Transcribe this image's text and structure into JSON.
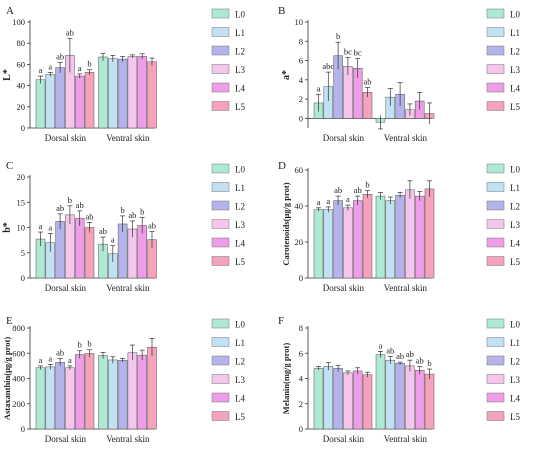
{
  "colors": [
    "#aee9d3",
    "#c2e1f2",
    "#b4b4ea",
    "#f4c6ec",
    "#ee9ee6",
    "#f5a3bd"
  ],
  "legend": [
    "L0",
    "L1",
    "L2",
    "L3",
    "L4",
    "L5"
  ],
  "chart_data": [
    {
      "type": "bar",
      "panel": "A",
      "ylabel": "L*",
      "ylim": [
        0,
        100
      ],
      "yticks": [
        0,
        20,
        40,
        60,
        80,
        100
      ],
      "groups": [
        "Dorsal skin",
        "Ventral skin"
      ],
      "series": [
        {
          "name": "L0",
          "values": [
            45.5,
            67.0
          ],
          "err": [
            3.5,
            3.5
          ],
          "labels": [
            "a",
            ""
          ]
        },
        {
          "name": "L1",
          "values": [
            50.5,
            65.5
          ],
          "err": [
            2.0,
            3.0
          ],
          "labels": [
            "a",
            ""
          ]
        },
        {
          "name": "L2",
          "values": [
            57.0,
            65.0
          ],
          "err": [
            5.0,
            2.5
          ],
          "labels": [
            "ab",
            ""
          ]
        },
        {
          "name": "L3",
          "values": [
            68.5,
            67.5
          ],
          "err": [
            16.0,
            1.5
          ],
          "labels": [
            "ab",
            ""
          ]
        },
        {
          "name": "L4",
          "values": [
            49.0,
            67.5
          ],
          "err": [
            2.0,
            2.5
          ],
          "labels": [
            "a",
            ""
          ]
        },
        {
          "name": "L5",
          "values": [
            52.5,
            62.5
          ],
          "err": [
            2.5,
            3.5
          ],
          "labels": [
            "b",
            ""
          ]
        }
      ]
    },
    {
      "type": "bar",
      "panel": "B",
      "ylabel": "a*",
      "ylim": [
        -1,
        10
      ],
      "yticks": [
        0,
        2,
        4,
        6,
        8,
        10
      ],
      "groups": [
        "Dorsal skin",
        "Ventral skin"
      ],
      "series": [
        {
          "name": "L0",
          "values": [
            1.6,
            -0.4
          ],
          "err": [
            0.9,
            0.7
          ],
          "labels": [
            "a",
            ""
          ]
        },
        {
          "name": "L1",
          "values": [
            3.3,
            2.2
          ],
          "err": [
            1.5,
            0.9
          ],
          "labels": [
            "abc",
            ""
          ]
        },
        {
          "name": "L2",
          "values": [
            6.5,
            2.5
          ],
          "err": [
            1.4,
            1.2
          ],
          "labels": [
            "b",
            ""
          ]
        },
        {
          "name": "L3",
          "values": [
            5.4,
            0.9
          ],
          "err": [
            0.9,
            0.6
          ],
          "labels": [
            "bc",
            ""
          ]
        },
        {
          "name": "L4",
          "values": [
            5.2,
            1.8
          ],
          "err": [
            1.0,
            0.9
          ],
          "labels": [
            "bc",
            ""
          ]
        },
        {
          "name": "L5",
          "values": [
            2.7,
            0.5
          ],
          "err": [
            0.5,
            1.1
          ],
          "labels": [
            "ab",
            ""
          ]
        }
      ]
    },
    {
      "type": "bar",
      "panel": "C",
      "ylabel": "b*",
      "ylim": [
        0,
        20
      ],
      "yticks": [
        0,
        5,
        10,
        15,
        20
      ],
      "groups": [
        "Dorsal skin",
        "Ventral skin"
      ],
      "series": [
        {
          "name": "L0",
          "values": [
            7.7,
            6.7
          ],
          "err": [
            1.4,
            1.4
          ],
          "labels": [
            "a",
            "ab"
          ]
        },
        {
          "name": "L1",
          "values": [
            7.0,
            4.8
          ],
          "err": [
            1.8,
            1.6
          ],
          "labels": [
            "a",
            "a"
          ]
        },
        {
          "name": "L2",
          "values": [
            11.2,
            10.7
          ],
          "err": [
            1.5,
            1.6
          ],
          "labels": [
            "ab",
            "b"
          ]
        },
        {
          "name": "L3",
          "values": [
            12.5,
            9.7
          ],
          "err": [
            1.8,
            1.6
          ],
          "labels": [
            "b",
            "ab"
          ]
        },
        {
          "name": "L4",
          "values": [
            11.8,
            10.4
          ],
          "err": [
            1.5,
            1.6
          ],
          "labels": [
            "ab",
            "b"
          ]
        },
        {
          "name": "L5",
          "values": [
            10.0,
            7.6
          ],
          "err": [
            1.0,
            1.6
          ],
          "labels": [
            "ab",
            "ab"
          ]
        }
      ]
    },
    {
      "type": "bar",
      "panel": "D",
      "ylabel": "Carotenoids(μg/g prot)",
      "ylim": [
        0,
        60
      ],
      "yticks": [
        0,
        20,
        40,
        60
      ],
      "groups": [
        "Dorsal skin",
        "Ventral skin"
      ],
      "series": [
        {
          "name": "L0",
          "values": [
            38.0,
            45.5
          ],
          "err": [
            1.0,
            2.0
          ],
          "labels": [
            "a",
            ""
          ]
        },
        {
          "name": "L1",
          "values": [
            38.0,
            43.0
          ],
          "err": [
            1.5,
            2.0
          ],
          "labels": [
            "a",
            ""
          ]
        },
        {
          "name": "L2",
          "values": [
            43.0,
            46.0
          ],
          "err": [
            2.5,
            1.5
          ],
          "labels": [
            "ab",
            ""
          ]
        },
        {
          "name": "L3",
          "values": [
            39.0,
            49.0
          ],
          "err": [
            1.5,
            5.0
          ],
          "labels": [
            "a",
            ""
          ]
        },
        {
          "name": "L4",
          "values": [
            43.0,
            45.5
          ],
          "err": [
            2.5,
            2.5
          ],
          "labels": [
            "ab",
            ""
          ]
        },
        {
          "name": "L5",
          "values": [
            46.5,
            49.5
          ],
          "err": [
            2.0,
            4.5
          ],
          "labels": [
            "b",
            ""
          ]
        }
      ]
    },
    {
      "type": "bar",
      "panel": "E",
      "ylabel": "Astaxanthin(μg/g prot)",
      "ylim": [
        0,
        800
      ],
      "yticks": [
        0,
        200,
        400,
        600,
        800
      ],
      "groups": [
        "Dorsal skin",
        "Ventral skin"
      ],
      "series": [
        {
          "name": "L0",
          "values": [
            485,
            582
          ],
          "err": [
            15,
            25
          ],
          "labels": [
            "a",
            ""
          ]
        },
        {
          "name": "L1",
          "values": [
            492,
            547
          ],
          "err": [
            20,
            25
          ],
          "labels": [
            "a",
            ""
          ]
        },
        {
          "name": "L2",
          "values": [
            528,
            545
          ],
          "err": [
            30,
            15
          ],
          "labels": [
            "ab",
            ""
          ]
        },
        {
          "name": "L3",
          "values": [
            485,
            605
          ],
          "err": [
            15,
            60
          ],
          "labels": [
            "a",
            ""
          ]
        },
        {
          "name": "L4",
          "values": [
            590,
            585
          ],
          "err": [
            30,
            40
          ],
          "labels": [
            "b",
            ""
          ]
        },
        {
          "name": "L5",
          "values": [
            598,
            648
          ],
          "err": [
            30,
            70
          ],
          "labels": [
            "b",
            ""
          ]
        }
      ]
    },
    {
      "type": "bar",
      "panel": "F",
      "ylabel": "Melanin(mg/g prot)",
      "ylim": [
        0,
        8
      ],
      "yticks": [
        0,
        2,
        4,
        6,
        8
      ],
      "groups": [
        "Dorsal skin",
        "Ventral skin"
      ],
      "series": [
        {
          "name": "L0",
          "values": [
            4.8,
            5.9
          ],
          "err": [
            0.15,
            0.25
          ],
          "labels": [
            "",
            "a"
          ]
        },
        {
          "name": "L1",
          "values": [
            4.95,
            5.45
          ],
          "err": [
            0.3,
            0.3
          ],
          "labels": [
            "",
            "ab"
          ]
        },
        {
          "name": "L2",
          "values": [
            4.8,
            5.2
          ],
          "err": [
            0.25,
            0.1
          ],
          "labels": [
            "",
            "ab"
          ]
        },
        {
          "name": "L3",
          "values": [
            4.45,
            5.0
          ],
          "err": [
            0.15,
            0.45
          ],
          "labels": [
            "",
            "ab"
          ]
        },
        {
          "name": "L4",
          "values": [
            4.6,
            4.65
          ],
          "err": [
            0.25,
            0.3
          ],
          "labels": [
            "",
            "ab"
          ]
        },
        {
          "name": "L5",
          "values": [
            4.3,
            4.35
          ],
          "err": [
            0.2,
            0.4
          ],
          "labels": [
            "",
            "b"
          ]
        }
      ]
    }
  ]
}
